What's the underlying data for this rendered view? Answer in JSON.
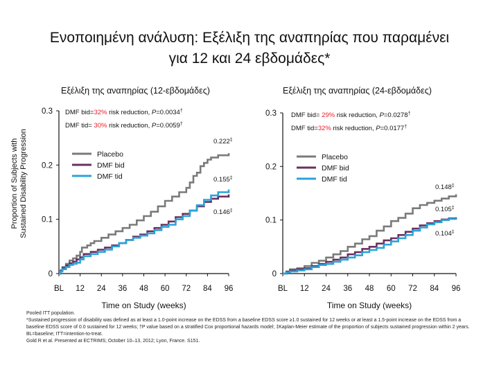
{
  "title": {
    "line1": "Ενοποιημένη ανάλυση: Εξέλιξη της αναπηρίας που παραμένει",
    "line2": "για 12 και 24 εβδομάδες*"
  },
  "shared_ylabel": {
    "line1": "Proportion of Subjects with",
    "line2": "Sustained Disability Progression"
  },
  "colors": {
    "placebo": "#7a7a7a",
    "dmf_bid": "#6b2f5e",
    "dmf_tid": "#2aa3d8",
    "highlight": "#e8212b"
  },
  "chart_data": [
    {
      "type": "line",
      "title": "Εξέλιξη της αναπηρίας (12-εβδομάδες)",
      "xlabel": "Time on Study (weeks)",
      "ylabel": "Proportion of Subjects with Sustained Disability Progression",
      "x_ticks": [
        "BL",
        "12",
        "24",
        "36",
        "48",
        "60",
        "72",
        "84",
        "96"
      ],
      "y_ticks": [
        "0",
        "0.1",
        "0.2",
        "0.3"
      ],
      "xlim": [
        0,
        96
      ],
      "ylim": [
        0,
        0.3
      ],
      "legend": {
        "position": "upper-left",
        "entries": [
          "Placebo",
          "DMF bid",
          "DMF tid"
        ]
      },
      "annotations": [
        {
          "prefix": "DMF bid=",
          "highlight": "32%",
          "suffix": " risk reduction, ",
          "p": "P",
          "pval": "=0.0034",
          "mark": "†"
        },
        {
          "prefix": "DMF tid= ",
          "highlight": "30%",
          "suffix": " risk reduction, ",
          "p": "P",
          "pval": "=0.0059",
          "mark": "†"
        }
      ],
      "end_labels": [
        {
          "series": "Placebo",
          "text": "0.222",
          "mark": "‡",
          "value": 0.222
        },
        {
          "series": "DMF tid",
          "text": "0.155",
          "mark": "‡",
          "value": 0.155
        },
        {
          "series": "DMF bid",
          "text": "0.146",
          "mark": "‡",
          "value": 0.146
        }
      ],
      "series": [
        {
          "name": "Placebo",
          "color": "#7a7a7a",
          "points": [
            [
              0,
              0
            ],
            [
              1,
              0.006
            ],
            [
              2,
              0.012
            ],
            [
              4,
              0.018
            ],
            [
              6,
              0.024
            ],
            [
              8,
              0.028
            ],
            [
              10,
              0.033
            ],
            [
              12,
              0.04
            ],
            [
              13,
              0.048
            ],
            [
              16,
              0.052
            ],
            [
              18,
              0.056
            ],
            [
              20,
              0.06
            ],
            [
              24,
              0.066
            ],
            [
              28,
              0.072
            ],
            [
              32,
              0.078
            ],
            [
              36,
              0.084
            ],
            [
              40,
              0.09
            ],
            [
              44,
              0.098
            ],
            [
              48,
              0.106
            ],
            [
              52,
              0.114
            ],
            [
              56,
              0.124
            ],
            [
              60,
              0.134
            ],
            [
              64,
              0.142
            ],
            [
              68,
              0.15
            ],
            [
              72,
              0.158
            ],
            [
              74,
              0.168
            ],
            [
              76,
              0.18
            ],
            [
              78,
              0.186
            ],
            [
              80,
              0.198
            ],
            [
              82,
              0.204
            ],
            [
              84,
              0.21
            ],
            [
              86,
              0.214
            ],
            [
              90,
              0.218
            ],
            [
              96,
              0.222
            ]
          ]
        },
        {
          "name": "DMF bid",
          "color": "#6b2f5e",
          "points": [
            [
              0,
              0
            ],
            [
              1,
              0.005
            ],
            [
              2,
              0.01
            ],
            [
              4,
              0.015
            ],
            [
              6,
              0.019
            ],
            [
              8,
              0.022
            ],
            [
              10,
              0.026
            ],
            [
              12,
              0.03
            ],
            [
              14,
              0.036
            ],
            [
              18,
              0.04
            ],
            [
              22,
              0.044
            ],
            [
              26,
              0.048
            ],
            [
              30,
              0.052
            ],
            [
              34,
              0.056
            ],
            [
              38,
              0.062
            ],
            [
              42,
              0.068
            ],
            [
              46,
              0.072
            ],
            [
              50,
              0.078
            ],
            [
              54,
              0.084
            ],
            [
              58,
              0.09
            ],
            [
              62,
              0.096
            ],
            [
              66,
              0.104
            ],
            [
              70,
              0.11
            ],
            [
              74,
              0.116
            ],
            [
              78,
              0.124
            ],
            [
              82,
              0.132
            ],
            [
              86,
              0.138
            ],
            [
              90,
              0.142
            ],
            [
              96,
              0.146
            ]
          ]
        },
        {
          "name": "DMF tid",
          "color": "#2aa3d8",
          "points": [
            [
              0,
              0
            ],
            [
              1,
              0.004
            ],
            [
              2,
              0.008
            ],
            [
              4,
              0.012
            ],
            [
              6,
              0.016
            ],
            [
              8,
              0.018
            ],
            [
              10,
              0.02
            ],
            [
              12,
              0.026
            ],
            [
              14,
              0.032
            ],
            [
              18,
              0.036
            ],
            [
              22,
              0.04
            ],
            [
              26,
              0.044
            ],
            [
              30,
              0.05
            ],
            [
              34,
              0.056
            ],
            [
              38,
              0.062
            ],
            [
              42,
              0.066
            ],
            [
              46,
              0.07
            ],
            [
              50,
              0.074
            ],
            [
              54,
              0.08
            ],
            [
              58,
              0.086
            ],
            [
              62,
              0.09
            ],
            [
              66,
              0.1
            ],
            [
              70,
              0.106
            ],
            [
              74,
              0.116
            ],
            [
              78,
              0.126
            ],
            [
              82,
              0.136
            ],
            [
              86,
              0.144
            ],
            [
              90,
              0.15
            ],
            [
              96,
              0.155
            ]
          ]
        }
      ]
    },
    {
      "type": "line",
      "title": "Εξέλιξη της αναπηρίας (24-εβδομάδες)",
      "xlabel": "Time on Study (weeks)",
      "ylabel": "",
      "x_ticks": [
        "BL",
        "12",
        "24",
        "36",
        "48",
        "60",
        "72",
        "84",
        "96"
      ],
      "y_ticks": [
        "0",
        "0.1",
        "0.2",
        "0.3"
      ],
      "xlim": [
        0,
        96
      ],
      "ylim": [
        0,
        0.3
      ],
      "legend": {
        "position": "upper-left",
        "entries": [
          "Placebo",
          "DMF bid",
          "DMF tid"
        ]
      },
      "annotations": [
        {
          "prefix": "DMF bid= ",
          "highlight": "29%",
          "suffix": " risk reduction, ",
          "p": "P",
          "pval": "=0.0278",
          "mark": "†"
        },
        {
          "prefix": "DMF tid=",
          "highlight": "32%",
          "suffix": " risk reduction, ",
          "p": "P",
          "pval": "=0.0177",
          "mark": "†"
        }
      ],
      "end_labels": [
        {
          "series": "Placebo",
          "text": "0.148",
          "mark": "‡",
          "value": 0.148
        },
        {
          "series": "DMF bid",
          "text": "0.105",
          "mark": "‡",
          "value": 0.105
        },
        {
          "series": "DMF tid",
          "text": "0.104",
          "mark": "‡",
          "value": 0.104
        }
      ],
      "series": [
        {
          "name": "Placebo",
          "color": "#7a7a7a",
          "points": [
            [
              0,
              0
            ],
            [
              2,
              0.004
            ],
            [
              4,
              0.008
            ],
            [
              8,
              0.01
            ],
            [
              12,
              0.014
            ],
            [
              16,
              0.02
            ],
            [
              20,
              0.024
            ],
            [
              24,
              0.03
            ],
            [
              28,
              0.036
            ],
            [
              32,
              0.042
            ],
            [
              36,
              0.05
            ],
            [
              40,
              0.056
            ],
            [
              44,
              0.064
            ],
            [
              48,
              0.07
            ],
            [
              52,
              0.08
            ],
            [
              56,
              0.088
            ],
            [
              60,
              0.098
            ],
            [
              64,
              0.104
            ],
            [
              68,
              0.112
            ],
            [
              72,
              0.122
            ],
            [
              76,
              0.128
            ],
            [
              80,
              0.132
            ],
            [
              84,
              0.136
            ],
            [
              88,
              0.14
            ],
            [
              92,
              0.144
            ],
            [
              96,
              0.148
            ]
          ]
        },
        {
          "name": "DMF bid",
          "color": "#6b2f5e",
          "points": [
            [
              0,
              0
            ],
            [
              2,
              0.003
            ],
            [
              4,
              0.006
            ],
            [
              8,
              0.008
            ],
            [
              12,
              0.01
            ],
            [
              16,
              0.014
            ],
            [
              20,
              0.018
            ],
            [
              24,
              0.022
            ],
            [
              28,
              0.026
            ],
            [
              32,
              0.03
            ],
            [
              36,
              0.036
            ],
            [
              40,
              0.04
            ],
            [
              44,
              0.046
            ],
            [
              48,
              0.05
            ],
            [
              52,
              0.056
            ],
            [
              56,
              0.062
            ],
            [
              60,
              0.066
            ],
            [
              64,
              0.072
            ],
            [
              68,
              0.078
            ],
            [
              72,
              0.084
            ],
            [
              76,
              0.09
            ],
            [
              80,
              0.094
            ],
            [
              84,
              0.098
            ],
            [
              88,
              0.101
            ],
            [
              92,
              0.103
            ],
            [
              96,
              0.105
            ]
          ]
        },
        {
          "name": "DMF tid",
          "color": "#2aa3d8",
          "points": [
            [
              0,
              0
            ],
            [
              2,
              0.002
            ],
            [
              4,
              0.004
            ],
            [
              8,
              0.006
            ],
            [
              12,
              0.008
            ],
            [
              16,
              0.012
            ],
            [
              20,
              0.016
            ],
            [
              24,
              0.018
            ],
            [
              28,
              0.022
            ],
            [
              32,
              0.026
            ],
            [
              36,
              0.03
            ],
            [
              40,
              0.034
            ],
            [
              44,
              0.04
            ],
            [
              48,
              0.044
            ],
            [
              52,
              0.048
            ],
            [
              56,
              0.054
            ],
            [
              60,
              0.06
            ],
            [
              64,
              0.066
            ],
            [
              68,
              0.072
            ],
            [
              72,
              0.08
            ],
            [
              76,
              0.086
            ],
            [
              80,
              0.092
            ],
            [
              84,
              0.096
            ],
            [
              88,
              0.1
            ],
            [
              92,
              0.102
            ],
            [
              96,
              0.104
            ]
          ]
        }
      ]
    }
  ],
  "footnotes": [
    "Pooled ITT population.",
    "*Sustained progression of disability was defined as at least a 1.0-point increase on the EDSS from a baseline EDSS score ≥1.0 sustained for 12 weeks or at least a 1.5-point increase on the EDSS from a baseline EDSS score of 0.0 sustained for 12 weeks; †P value based on a stratified Cox proportional hazards model; ‡Kaplan-Meier estimate of the proportion of subjects sustained progression within 2 years.",
    "BL=baseline; ITT=intention-to-treat.",
    "Gold R et al. Presented at ECTRIMS; October 10–13, 2012; Lyon, France. S151."
  ]
}
